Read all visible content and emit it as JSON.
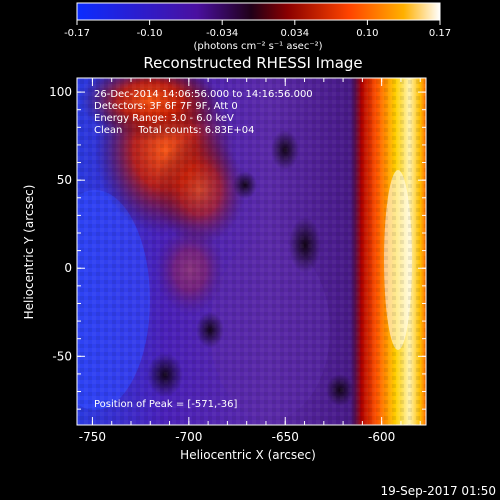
{
  "colorbar": {
    "ticks": [
      "-0.17",
      "-0.10",
      "-0.034",
      "0.034",
      "0.10",
      "0.17"
    ],
    "units_label": "(photons cm⁻² s⁻¹ asec⁻²)",
    "colors": [
      "#0b2cff",
      "#4a10a0",
      "#200018",
      "#8a0000",
      "#ff4400",
      "#ffb000",
      "#ffffff"
    ]
  },
  "title": "Reconstructed RHESSI Image",
  "info": {
    "time_range": "26-Dec-2014 14:06:56.000 to 14:16:56.000",
    "detectors": "Detectors: 3F 6F 7F 9F, Att 0",
    "energy": "Energy Range: 3.0 - 6.0 keV",
    "clean": "Clean     Total counts: 6.83E+04",
    "peak": "Position of Peak = [-571,-36]"
  },
  "axes": {
    "xlabel": "Heliocentric X (arcsec)",
    "ylabel": "Heliocentric Y (arcsec)",
    "xticks": [
      "-750",
      "-700",
      "-650",
      "-600"
    ],
    "yticks": [
      "100",
      "50",
      "0",
      "-50"
    ]
  },
  "footer": {
    "timestamp": "19-Sep-2017 01:50"
  }
}
